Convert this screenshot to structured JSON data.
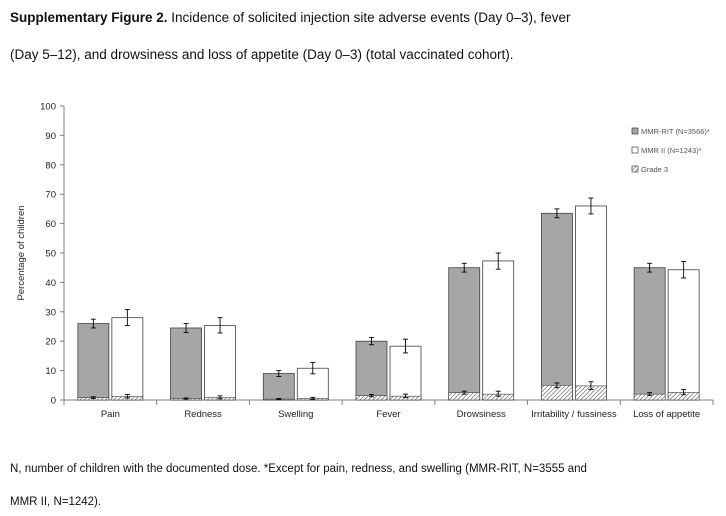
{
  "caption": {
    "label": "Supplementary Figure 2.",
    "line1": " Incidence of solicited injection site adverse events (Day 0–3), fever",
    "line2": "(Day 5–12), and drowsiness and loss of appetite (Day 0–3) (total vaccinated cohort)."
  },
  "footnote": {
    "line1": "N, number of children with the documented dose. *Except for pain, redness, and swelling (MMR-RIT,  N=3555 and",
    "line2": "MMR II, N=1242)."
  },
  "colors": {
    "mmr_rit": "#a6a6a6",
    "mmr_ii": "#ffffff",
    "outline": "#404040",
    "axis": "#808080"
  },
  "chart_data": {
    "type": "bar",
    "ylabel": "Percentage of children",
    "xlabel": "",
    "ylim": [
      0,
      100
    ],
    "yticks": [
      0,
      10,
      20,
      30,
      40,
      50,
      60,
      70,
      80,
      90,
      100
    ],
    "categories": [
      "Pain",
      "Redness",
      "Swelling",
      "Fever",
      "Drowsiness",
      "Irritability / fussiness",
      "Loss of appetite"
    ],
    "series": [
      {
        "name": "MMR-RIT (N=3566)*",
        "values": [
          26,
          24.5,
          9,
          20,
          45,
          63.5,
          45
        ],
        "ci_low": [
          24.5,
          23,
          8,
          18.8,
          43.5,
          62,
          43.5
        ],
        "ci_high": [
          27.5,
          26,
          10,
          21.3,
          46.5,
          65,
          46.5
        ],
        "grade3": [
          0.8,
          0.5,
          0.3,
          1.5,
          2.5,
          5,
          2
        ],
        "grade3_ci_low": [
          0.5,
          0.3,
          0.2,
          1.1,
          2,
          4.2,
          1.6
        ],
        "grade3_ci_high": [
          1.1,
          0.7,
          0.5,
          1.9,
          3,
          5.8,
          2.5
        ]
      },
      {
        "name": "MMR II (N=1243)*",
        "values": [
          28,
          25.3,
          10.8,
          18.3,
          47.3,
          66,
          44.3
        ],
        "ci_low": [
          25.3,
          22.8,
          8.9,
          16,
          44.5,
          63.3,
          41.5
        ],
        "ci_high": [
          30.8,
          28,
          12.8,
          20.7,
          50,
          68.7,
          47.1
        ],
        "grade3": [
          1.2,
          0.8,
          0.5,
          1.3,
          2,
          4.8,
          2.6
        ],
        "grade3_ci_low": [
          0.7,
          0.4,
          0.2,
          0.8,
          1.3,
          3.6,
          1.8
        ],
        "grade3_ci_high": [
          1.9,
          1.4,
          0.9,
          2,
          3,
          6.2,
          3.6
        ]
      }
    ],
    "legend": {
      "position": "top-right",
      "entries": [
        "MMR-RIT (N=3566)*",
        "MMR II (N=1243)*",
        "Grade 3"
      ]
    }
  }
}
